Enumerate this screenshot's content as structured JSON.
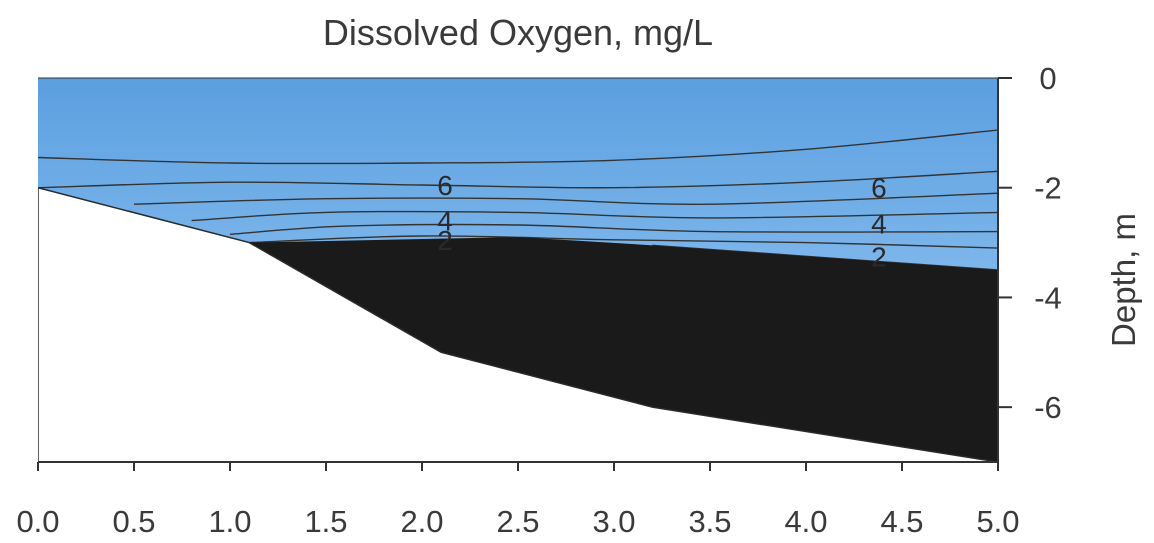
{
  "chart_data": {
    "type": "contour",
    "title": "Dissolved Oxygen, mg/L",
    "xlabel": "",
    "ylabel": "Depth, m",
    "xlim": [
      0,
      5
    ],
    "ylim": [
      -7,
      0
    ],
    "x_ticks": [
      "0.0",
      "0.5",
      "1.0",
      "1.5",
      "2.0",
      "2.5",
      "3.0",
      "3.5",
      "4.0",
      "4.5",
      "5.0"
    ],
    "y_ticks": [
      "0",
      "-2",
      "-4",
      "-6"
    ],
    "y_axis_side": "right",
    "colors": {
      "surface_water": "#5b9fe0",
      "deep_water": "#9fcdf6",
      "anoxic_zone": "#1a1a1a",
      "bottom": "#ffffff",
      "contour_line": "#333333"
    },
    "bottom_profile": [
      [
        0,
        -2.0
      ],
      [
        1.1,
        -3.0
      ],
      [
        2.1,
        -5.0
      ],
      [
        3.2,
        -6.0
      ],
      [
        5.0,
        -7.0
      ]
    ],
    "anoxic_top": [
      [
        1.1,
        -3.0
      ],
      [
        2.5,
        -2.9
      ],
      [
        3.2,
        -3.05
      ],
      [
        5.0,
        -3.5
      ]
    ],
    "contours": [
      {
        "label": "",
        "points": [
          [
            0,
            -1.45
          ],
          [
            1.0,
            -1.55
          ],
          [
            2.0,
            -1.55
          ],
          [
            3.0,
            -1.5
          ],
          [
            4.0,
            -1.3
          ],
          [
            5.0,
            -0.95
          ]
        ]
      },
      {
        "label": "6",
        "points": [
          [
            0,
            -2.0
          ],
          [
            1.0,
            -1.9
          ],
          [
            2.0,
            -1.95
          ],
          [
            3.0,
            -2.0
          ],
          [
            4.0,
            -1.9
          ],
          [
            5.0,
            -1.7
          ]
        ]
      },
      {
        "label": "",
        "points": [
          [
            0.5,
            -2.3
          ],
          [
            1.5,
            -2.2
          ],
          [
            2.5,
            -2.2
          ],
          [
            3.5,
            -2.3
          ],
          [
            5.0,
            -2.1
          ]
        ]
      },
      {
        "label": "",
        "points": [
          [
            0.8,
            -2.6
          ],
          [
            1.5,
            -2.45
          ],
          [
            2.5,
            -2.45
          ],
          [
            3.5,
            -2.55
          ],
          [
            5.0,
            -2.45
          ]
        ]
      },
      {
        "label": "4",
        "points": [
          [
            1.0,
            -2.85
          ],
          [
            1.6,
            -2.7
          ],
          [
            2.5,
            -2.68
          ],
          [
            3.5,
            -2.8
          ],
          [
            5.0,
            -2.8
          ]
        ]
      },
      {
        "label": "",
        "points": [
          [
            1.1,
            -3.0
          ],
          [
            2.0,
            -2.88
          ],
          [
            3.0,
            -2.95
          ],
          [
            4.0,
            -3.0
          ],
          [
            5.0,
            -3.1
          ]
        ]
      },
      {
        "label": "2",
        "points": [
          [
            3.2,
            -3.05
          ],
          [
            5.0,
            -3.5
          ]
        ]
      },
      {
        "label": "",
        "points": [
          [
            4.8,
            -6.8
          ],
          [
            5.0,
            -6.9
          ]
        ]
      }
    ],
    "contour_labels": [
      {
        "text": "6",
        "x": 2.12,
        "y": -1.95
      },
      {
        "text": "4",
        "x": 2.12,
        "y": -2.6
      },
      {
        "text": "2",
        "x": 2.12,
        "y": -2.95
      },
      {
        "text": "6",
        "x": 4.38,
        "y": -2.0
      },
      {
        "text": "4",
        "x": 4.38,
        "y": -2.65
      },
      {
        "text": "2",
        "x": 4.38,
        "y": -3.25
      }
    ]
  }
}
